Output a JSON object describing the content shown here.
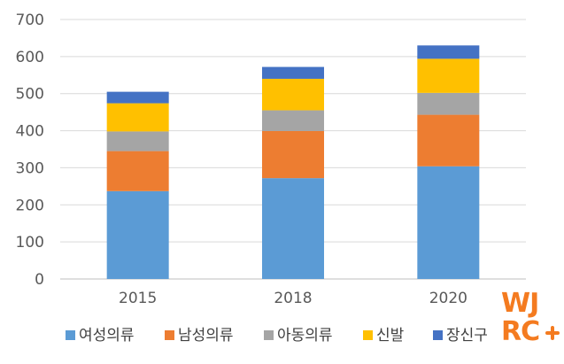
{
  "chart_data": {
    "type": "bar",
    "stacked": true,
    "categories": [
      "2015",
      "2018",
      "2020"
    ],
    "series": [
      {
        "name": "여성의류",
        "color": "#5B9BD5",
        "values": [
          237,
          272,
          304
        ]
      },
      {
        "name": "남성의류",
        "color": "#ED7D31",
        "values": [
          108,
          127,
          139
        ]
      },
      {
        "name": "아동의류",
        "color": "#A5A5A5",
        "values": [
          53,
          56,
          59
        ]
      },
      {
        "name": "신발",
        "color": "#FFC000",
        "values": [
          76,
          85,
          92
        ]
      },
      {
        "name": "장신구",
        "color": "#4472C4",
        "values": [
          31,
          32,
          36
        ]
      }
    ],
    "ylim": [
      0,
      700
    ],
    "yticks": [
      "0",
      "100",
      "200",
      "300",
      "400",
      "500",
      "600",
      "700"
    ],
    "grid": true,
    "legend": "bottom",
    "title": "",
    "xlabel": "",
    "ylabel": ""
  },
  "logo": {
    "top": "WJ",
    "bottom": "RC",
    "color": "#F47B20"
  }
}
